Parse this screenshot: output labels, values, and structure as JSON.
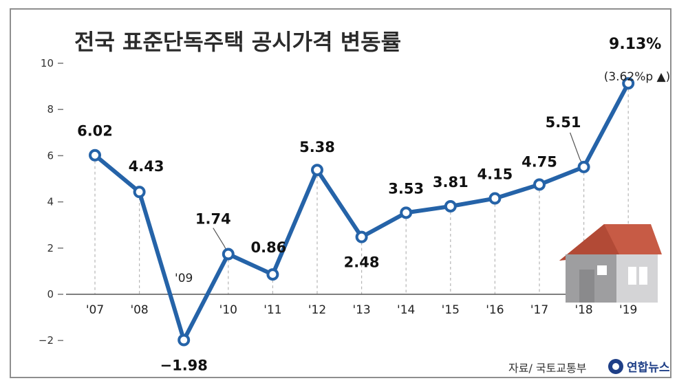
{
  "chart_data": {
    "type": "line",
    "title": "전국 표준단독주택 공시가격 변동률",
    "categories": [
      "'07",
      "'08",
      "'09",
      "'10",
      "'11",
      "'12",
      "'13",
      "'14",
      "'15",
      "'16",
      "'17",
      "'18",
      "'19"
    ],
    "values": [
      6.02,
      4.43,
      -1.98,
      1.74,
      0.86,
      5.38,
      2.48,
      3.53,
      3.81,
      4.15,
      4.75,
      5.51,
      9.13
    ],
    "data_labels": [
      "6.02",
      "4.43",
      "−1.98",
      "1.74",
      "0.86",
      "5.38",
      "2.48",
      "3.53",
      "3.81",
      "4.15",
      "4.75",
      "5.51",
      "9.13%"
    ],
    "annotation": "(3.62%p ▲)",
    "yticks": [
      "10",
      "8",
      "6",
      "4",
      "2",
      "0",
      "−2"
    ],
    "ylim": [
      -2,
      10
    ],
    "grid": "vertical dashed",
    "line_color": "#2563a8",
    "marker_fill": "#ffffff",
    "source": "자료/ 국토교통부",
    "brand": "연합뉴스"
  }
}
